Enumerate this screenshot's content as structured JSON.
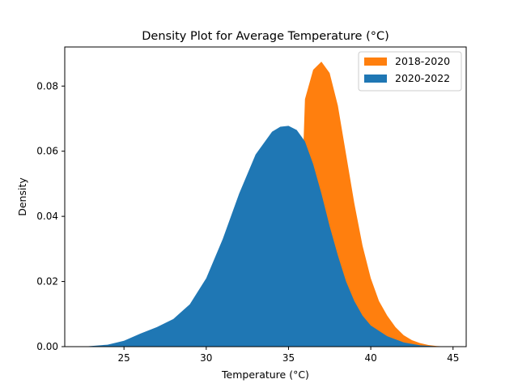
{
  "chart_data": {
    "type": "area",
    "title": "Density Plot for Average Temperature (°C)",
    "xlabel": "Temperature (°C)",
    "ylabel": "Density",
    "xlim": [
      21.4,
      45.8
    ],
    "ylim": [
      0,
      0.092
    ],
    "xticks": [
      25,
      30,
      35,
      40,
      45
    ],
    "xtick_labels": [
      "25",
      "30",
      "35",
      "40",
      "45"
    ],
    "yticks": [
      0,
      0.02,
      0.04,
      0.06,
      0.08
    ],
    "ytick_labels": [
      "0.00",
      "0.02",
      "0.04",
      "0.06",
      "0.08"
    ],
    "grid": false,
    "legend_position": "top-right",
    "stacked": false,
    "series": [
      {
        "name": "2018-2020",
        "color": "#ff7f0e",
        "x": [
          22.5,
          24,
          25,
          26,
          27,
          28,
          29,
          30,
          31,
          32,
          33,
          34,
          35,
          35.5,
          36,
          36.5,
          37,
          37.5,
          38,
          38.5,
          39,
          39.5,
          40,
          40.5,
          41,
          41.5,
          42,
          42.5,
          43,
          43.5,
          44,
          44.5,
          44.8
        ],
        "values": [
          0.0,
          0.0,
          0.0,
          0.0,
          0.0,
          0.0,
          0.0,
          0.0,
          0.0,
          0.0,
          0.0,
          0.0,
          0.0,
          0.0,
          0.076,
          0.085,
          0.0875,
          0.084,
          0.074,
          0.059,
          0.044,
          0.031,
          0.021,
          0.014,
          0.0095,
          0.006,
          0.0035,
          0.002,
          0.0011,
          0.0005,
          0.0002,
          5e-05,
          0.0
        ]
      },
      {
        "name": "2020-2022",
        "color": "#1f77b4",
        "x": [
          22.5,
          23,
          24,
          25,
          26,
          27,
          28,
          29,
          30,
          31,
          32,
          33,
          34,
          34.5,
          35,
          35.5,
          36,
          36.5,
          37,
          37.5,
          38,
          38.5,
          39,
          39.5,
          40,
          41,
          42,
          43,
          44,
          44.8
        ],
        "values": [
          0.0,
          0.0002,
          0.0006,
          0.0018,
          0.004,
          0.006,
          0.0085,
          0.013,
          0.021,
          0.033,
          0.047,
          0.059,
          0.066,
          0.0675,
          0.0678,
          0.0665,
          0.063,
          0.056,
          0.047,
          0.037,
          0.028,
          0.02,
          0.014,
          0.0095,
          0.0065,
          0.0032,
          0.0013,
          0.0004,
          0.0001,
          0.0
        ]
      }
    ]
  }
}
